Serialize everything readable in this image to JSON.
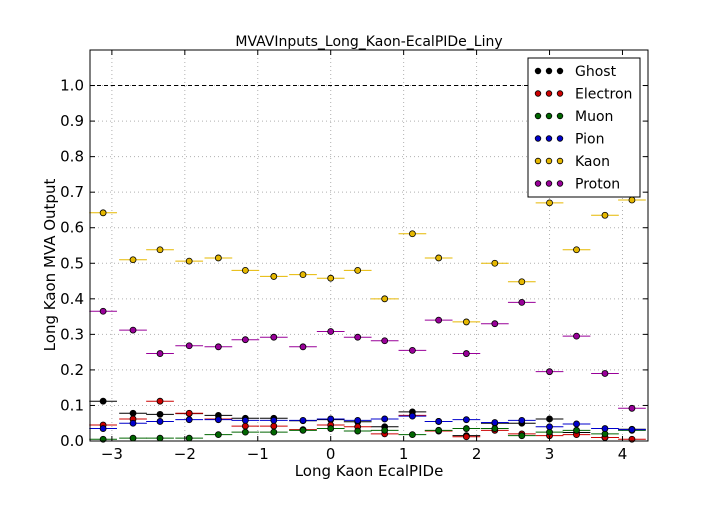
{
  "chart_data": {
    "type": "scatter",
    "title": "MVAVInputs_Long_Kaon-EcalPIDe_Liny",
    "xlabel": "Long Kaon EcalPIDe",
    "ylabel": "Long Kaon MVA Output",
    "xlim": [
      -3.3,
      4.35
    ],
    "ylim": [
      0.0,
      1.1
    ],
    "x_ticks": [
      -3,
      -2,
      -1,
      0,
      1,
      2,
      3,
      4
    ],
    "x_tick_labels": [
      "−3",
      "−2",
      "−1",
      "0",
      "1",
      "2",
      "3",
      "4"
    ],
    "y_ticks": [
      0.0,
      0.1,
      0.2,
      0.3,
      0.4,
      0.5,
      0.6,
      0.7,
      0.8,
      0.9,
      1.0
    ],
    "y_tick_labels": [
      "0.0",
      "0.1",
      "0.2",
      "0.3",
      "0.4",
      "0.5",
      "0.6",
      "0.7",
      "0.8",
      "0.9",
      "1.0"
    ],
    "grid": true,
    "reference_line": 1.0,
    "legend_position": "top-right",
    "x": [
      -3.12,
      -2.71,
      -2.34,
      -1.94,
      -1.54,
      -1.17,
      -0.78,
      -0.38,
      0.0,
      0.37,
      0.74,
      1.12,
      1.48,
      1.86,
      2.25,
      2.62,
      3.0,
      3.37,
      3.76,
      4.13
    ],
    "bin_half_width": 0.19,
    "series": [
      {
        "name": "Ghost",
        "color": "#000000",
        "values": [
          0.112,
          0.078,
          0.075,
          0.077,
          0.072,
          0.064,
          0.064,
          0.057,
          0.06,
          0.054,
          0.04,
          0.082,
          0.055,
          0.015,
          0.05,
          0.05,
          0.062,
          0.024,
          0.01,
          0.033
        ]
      },
      {
        "name": "Electron",
        "color": "#cc0000",
        "values": [
          0.045,
          0.062,
          0.112,
          0.078,
          0.062,
          0.042,
          0.042,
          0.032,
          0.045,
          0.04,
          0.02,
          0.072,
          0.028,
          0.012,
          0.03,
          0.02,
          0.015,
          0.018,
          0.01,
          0.005
        ]
      },
      {
        "name": "Muon",
        "color": "#006600",
        "values": [
          0.005,
          0.008,
          0.008,
          0.008,
          0.018,
          0.025,
          0.025,
          0.03,
          0.035,
          0.028,
          0.03,
          0.018,
          0.03,
          0.035,
          0.035,
          0.015,
          0.025,
          0.03,
          0.02,
          0.03
        ]
      },
      {
        "name": "Pion",
        "color": "#0000cc",
        "values": [
          0.035,
          0.05,
          0.055,
          0.06,
          0.06,
          0.058,
          0.058,
          0.058,
          0.062,
          0.058,
          0.062,
          0.07,
          0.055,
          0.06,
          0.052,
          0.058,
          0.04,
          0.048,
          0.035,
          0.032
        ]
      },
      {
        "name": "Kaon",
        "color": "#e6b800",
        "values": [
          0.642,
          0.51,
          0.538,
          0.506,
          0.515,
          0.48,
          0.463,
          0.468,
          0.458,
          0.48,
          0.4,
          0.583,
          0.515,
          0.335,
          0.5,
          0.448,
          0.67,
          0.538,
          0.635,
          0.678
        ]
      },
      {
        "name": "Proton",
        "color": "#990099",
        "values": [
          0.365,
          0.312,
          0.246,
          0.268,
          0.265,
          0.285,
          0.292,
          0.265,
          0.308,
          0.292,
          0.282,
          0.255,
          0.34,
          0.246,
          0.33,
          0.39,
          0.195,
          0.295,
          0.19,
          0.092
        ]
      }
    ]
  }
}
